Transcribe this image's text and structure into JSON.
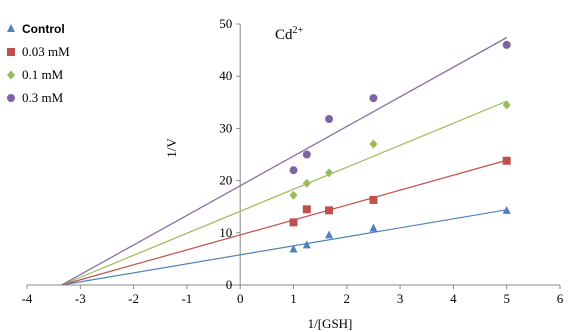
{
  "chart_data": {
    "type": "scatter",
    "annotation": {
      "base": "Cd",
      "superscript": "2+"
    },
    "xlabel": "1/[GSH]",
    "ylabel": "1/V",
    "xlim": [
      -4,
      6
    ],
    "ylim": [
      0,
      50
    ],
    "xticks": [
      -4,
      -3,
      -2,
      -1,
      0,
      1,
      2,
      3,
      4,
      5,
      6
    ],
    "yticks": [
      0,
      10,
      20,
      30,
      40,
      50
    ],
    "grid": false,
    "legend_position": "top-left",
    "series": [
      {
        "name": "Control",
        "marker": "triangle",
        "color": "#4f81bd",
        "x": [
          1,
          1.25,
          1.667,
          2.5,
          5
        ],
        "y": [
          6.8,
          7.6,
          9.5,
          10.8,
          14.2
        ],
        "fit": {
          "x": [
            -3.35,
            5
          ],
          "y": [
            0,
            14.4
          ]
        }
      },
      {
        "name": "0.03 mM",
        "marker": "square",
        "color": "#c0504d",
        "x": [
          1,
          1.25,
          1.667,
          2.5,
          5
        ],
        "y": [
          12,
          14.5,
          14.3,
          16.3,
          23.8
        ],
        "fit": {
          "x": [
            -3.35,
            5
          ],
          "y": [
            0,
            23.9
          ]
        }
      },
      {
        "name": "0.1 mM",
        "marker": "diamond",
        "color": "#9bbb59",
        "x": [
          1,
          1.25,
          1.667,
          2.5,
          5
        ],
        "y": [
          17.2,
          19.5,
          21.5,
          27,
          34.5
        ],
        "fit": {
          "x": [
            -3.35,
            5
          ],
          "y": [
            0,
            35.2
          ]
        }
      },
      {
        "name": "0.3 mM",
        "marker": "circle",
        "color": "#8064a2",
        "x": [
          1,
          1.25,
          1.667,
          2.5,
          5
        ],
        "y": [
          22,
          25,
          31.8,
          35.8,
          46
        ],
        "fit": {
          "x": [
            -3.35,
            5
          ],
          "y": [
            0,
            47.4
          ]
        }
      }
    ]
  }
}
